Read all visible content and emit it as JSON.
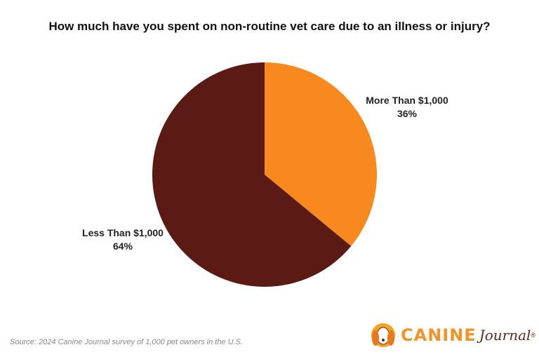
{
  "chart_data": {
    "type": "pie",
    "title": "How much have you spent on non-routine vet care due to an illness or injury?",
    "slices": [
      {
        "label": "More Than $1,000",
        "value": 36,
        "value_label": "36%",
        "color": "#F7891F"
      },
      {
        "label": "Less Than $1,000",
        "value": 64,
        "value_label": "64%",
        "color": "#5C1A14"
      }
    ],
    "start_angle": "top, clockwise",
    "legend": "none (direct labels)"
  },
  "footer": {
    "source": "Source: 2024 Canine Journal survey of 1,000 pet owners in the U.S.",
    "logo": {
      "brand": "CANINE",
      "brand2": "Journal",
      "mark": "®"
    }
  }
}
